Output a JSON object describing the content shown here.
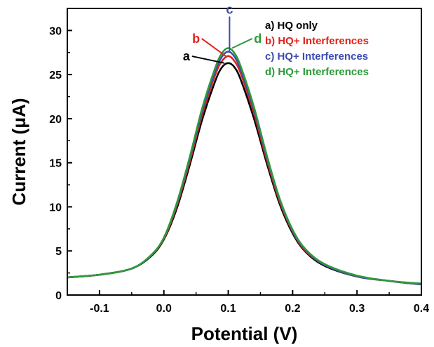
{
  "chart_data": {
    "type": "line",
    "xlabel": "Potential (V)",
    "ylabel": "Current (μA)",
    "xlim": [
      -0.15,
      0.4
    ],
    "ylim": [
      0,
      32.5
    ],
    "x_ticks": [
      -0.1,
      0.0,
      0.1,
      0.2,
      0.3,
      0.4
    ],
    "x_tick_labels": [
      "-0.1",
      "0.0",
      "0.1",
      "0.2",
      "0.3",
      "0.4"
    ],
    "y_ticks": [
      0,
      5,
      10,
      15,
      20,
      25,
      30
    ],
    "y_tick_labels": [
      "0",
      "5",
      "10",
      "15",
      "20",
      "25",
      "30"
    ],
    "grid": false,
    "legend_position": "top-right",
    "x": [
      -0.15,
      -0.1,
      -0.05,
      -0.02,
      0.0,
      0.02,
      0.04,
      0.06,
      0.08,
      0.09,
      0.1,
      0.11,
      0.12,
      0.14,
      0.16,
      0.18,
      0.2,
      0.22,
      0.25,
      0.3,
      0.35,
      0.4
    ],
    "series": [
      {
        "name": "a) HQ only",
        "color": "#000000",
        "values": [
          2.0,
          2.3,
          3.0,
          4.4,
          6.3,
          9.8,
          14.7,
          20.0,
          24.3,
          25.8,
          26.3,
          25.8,
          24.3,
          20.0,
          14.9,
          10.3,
          7.0,
          4.9,
          3.3,
          2.1,
          1.6,
          1.2
        ]
      },
      {
        "name": "b) HQ+ Interferences",
        "color": "#e2231a",
        "values": [
          2.0,
          2.3,
          3.0,
          4.5,
          6.4,
          10.1,
          15.1,
          20.6,
          25.0,
          26.5,
          27.1,
          26.5,
          25.0,
          20.6,
          15.3,
          10.6,
          7.2,
          5.0,
          3.4,
          2.1,
          1.6,
          1.2
        ]
      },
      {
        "name": "c) HQ+ Interferences",
        "color": "#3c4bb0",
        "values": [
          2.0,
          2.3,
          3.0,
          4.5,
          6.5,
          10.3,
          15.4,
          21.0,
          25.4,
          27.0,
          27.6,
          27.0,
          25.4,
          21.0,
          15.6,
          10.8,
          7.3,
          5.1,
          3.4,
          2.1,
          1.6,
          1.2
        ]
      },
      {
        "name": "d) HQ+ Interferences",
        "color": "#2e9a3a",
        "values": [
          2.0,
          2.3,
          3.0,
          4.5,
          6.5,
          10.4,
          15.6,
          21.3,
          25.8,
          27.4,
          28.0,
          27.4,
          25.8,
          21.3,
          15.8,
          10.9,
          7.4,
          5.2,
          3.5,
          2.2,
          1.6,
          1.3
        ]
      }
    ],
    "annotations": [
      {
        "text": "a",
        "color": "#000000",
        "x": 0.035,
        "y": 26.6,
        "target_x": 0.094,
        "target_y": 26.3
      },
      {
        "text": "b",
        "color": "#e2231a",
        "x": 0.05,
        "y": 28.6,
        "target_x": 0.096,
        "target_y": 27.1
      },
      {
        "text": "c",
        "color": "#3c4bb0",
        "x": 0.102,
        "y": 31.9,
        "target_x": 0.102,
        "target_y": 27.6
      },
      {
        "text": "d",
        "color": "#2e9a3a",
        "x": 0.146,
        "y": 28.6,
        "target_x": 0.106,
        "target_y": 28.0
      }
    ]
  }
}
